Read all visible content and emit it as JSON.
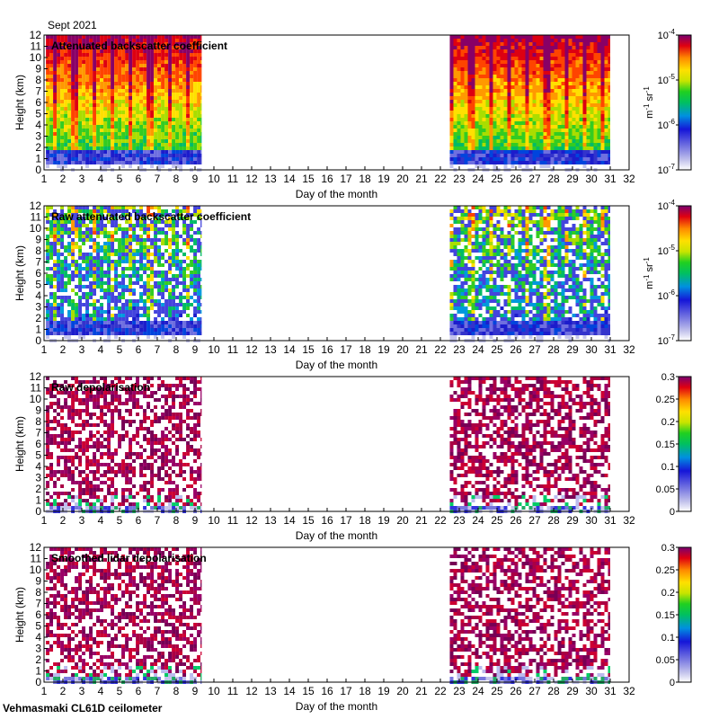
{
  "header": {
    "month_label": "Sept 2021"
  },
  "footer": {
    "instrument_label": "Vehmasmaki CL61D ceilometer"
  },
  "chart_data": [
    {
      "type": "heatmap",
      "title": "Attenuated backscatter coefficient",
      "xlabel": "Day of the month",
      "ylabel": "Height (km)",
      "x_ticks": [
        1,
        2,
        3,
        4,
        5,
        6,
        7,
        8,
        9,
        10,
        11,
        12,
        13,
        14,
        15,
        16,
        17,
        18,
        19,
        20,
        21,
        22,
        23,
        24,
        25,
        26,
        27,
        28,
        29,
        30,
        31,
        32
      ],
      "y_ticks": [
        0,
        1,
        2,
        3,
        4,
        5,
        6,
        7,
        8,
        9,
        10,
        11,
        12
      ],
      "xlim": [
        1,
        32
      ],
      "ylim": [
        0,
        12
      ],
      "data_coverage_days": [
        [
          1.1,
          9.35
        ],
        [
          22.5,
          31.0
        ]
      ],
      "colorbar": {
        "scale": "log",
        "range": [
          1e-07,
          0.0001
        ],
        "ticks": [
          {
            "value": 0.0001,
            "base": "10",
            "exp": "-4"
          },
          {
            "value": 1e-05,
            "base": "10",
            "exp": "-5"
          },
          {
            "value": 1e-06,
            "base": "10",
            "exp": "-6"
          },
          {
            "value": 1e-07,
            "base": "10",
            "exp": "-7"
          }
        ],
        "units": {
          "m": "m",
          "m_exp": "-1",
          "sr": "sr",
          "sr_exp": "-1"
        }
      }
    },
    {
      "type": "heatmap",
      "title": "Raw attenuated backscatter coefficient",
      "xlabel": "Day of the month",
      "ylabel": "Height (km)",
      "x_ticks": [
        1,
        2,
        3,
        4,
        5,
        6,
        7,
        8,
        9,
        10,
        11,
        12,
        13,
        14,
        15,
        16,
        17,
        18,
        19,
        20,
        21,
        22,
        23,
        24,
        25,
        26,
        27,
        28,
        29,
        30,
        31,
        32
      ],
      "y_ticks": [
        0,
        1,
        2,
        3,
        4,
        5,
        6,
        7,
        8,
        9,
        10,
        11,
        12
      ],
      "xlim": [
        1,
        32
      ],
      "ylim": [
        0,
        12
      ],
      "data_coverage_days": [
        [
          1.1,
          9.35
        ],
        [
          22.5,
          31.0
        ]
      ],
      "colorbar": {
        "scale": "log",
        "range": [
          1e-07,
          0.0001
        ],
        "ticks": [
          {
            "value": 0.0001,
            "base": "10",
            "exp": "-4"
          },
          {
            "value": 1e-05,
            "base": "10",
            "exp": "-5"
          },
          {
            "value": 1e-06,
            "base": "10",
            "exp": "-6"
          },
          {
            "value": 1e-07,
            "base": "10",
            "exp": "-7"
          }
        ],
        "units": {
          "m": "m",
          "m_exp": "-1",
          "sr": "sr",
          "sr_exp": "-1"
        }
      }
    },
    {
      "type": "heatmap",
      "title": "Raw depolarisation",
      "xlabel": "Day of the month",
      "ylabel": "Height (km)",
      "x_ticks": [
        1,
        2,
        3,
        4,
        5,
        6,
        7,
        8,
        9,
        10,
        11,
        12,
        13,
        14,
        15,
        16,
        17,
        18,
        19,
        20,
        21,
        22,
        23,
        24,
        25,
        26,
        27,
        28,
        29,
        30,
        31,
        32
      ],
      "y_ticks": [
        0,
        1,
        2,
        3,
        4,
        5,
        6,
        7,
        8,
        9,
        10,
        11,
        12
      ],
      "xlim": [
        1,
        32
      ],
      "ylim": [
        0,
        12
      ],
      "data_coverage_days": [
        [
          1.1,
          9.35
        ],
        [
          22.5,
          31.0
        ]
      ],
      "colorbar": {
        "scale": "linear",
        "range": [
          0,
          0.3
        ],
        "ticks": [
          {
            "value": 0.3,
            "label": "0.3"
          },
          {
            "value": 0.25,
            "label": "0.25"
          },
          {
            "value": 0.2,
            "label": "0.2"
          },
          {
            "value": 0.15,
            "label": "0.15"
          },
          {
            "value": 0.1,
            "label": "0.1"
          },
          {
            "value": 0.05,
            "label": "0.05"
          },
          {
            "value": 0,
            "label": "0"
          }
        ]
      }
    },
    {
      "type": "heatmap",
      "title": "Smoothed lidar depolarisation",
      "xlabel": "Day of the month",
      "ylabel": "Height (km)",
      "x_ticks": [
        1,
        2,
        3,
        4,
        5,
        6,
        7,
        8,
        9,
        10,
        11,
        12,
        13,
        14,
        15,
        16,
        17,
        18,
        19,
        20,
        21,
        22,
        23,
        24,
        25,
        26,
        27,
        28,
        29,
        30,
        31,
        32
      ],
      "y_ticks": [
        0,
        1,
        2,
        3,
        4,
        5,
        6,
        7,
        8,
        9,
        10,
        11,
        12
      ],
      "xlim": [
        1,
        32
      ],
      "ylim": [
        0,
        12
      ],
      "data_coverage_days": [
        [
          1.1,
          9.35
        ],
        [
          22.5,
          31.0
        ]
      ],
      "colorbar": {
        "scale": "linear",
        "range": [
          0,
          0.3
        ],
        "ticks": [
          {
            "value": 0.3,
            "label": "0.3"
          },
          {
            "value": 0.25,
            "label": "0.25"
          },
          {
            "value": 0.2,
            "label": "0.2"
          },
          {
            "value": 0.15,
            "label": "0.15"
          },
          {
            "value": 0.1,
            "label": "0.1"
          },
          {
            "value": 0.05,
            "label": "0.05"
          },
          {
            "value": 0,
            "label": "0"
          }
        ]
      }
    }
  ]
}
